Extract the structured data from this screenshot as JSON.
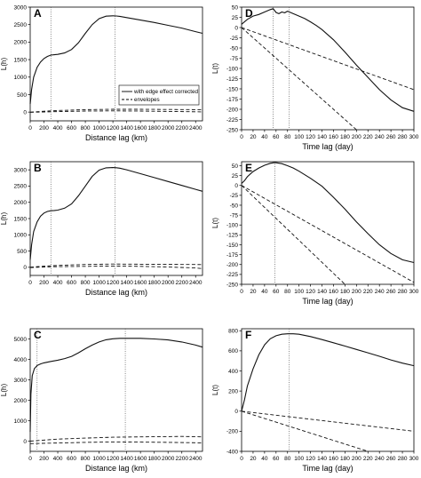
{
  "chart_data": [
    {
      "panel": "A",
      "type": "line",
      "xlabel": "Distance lag (km)",
      "ylabel": "L(h)",
      "xlim": [
        0,
        2500
      ],
      "ylim": [
        -250,
        3000
      ],
      "xticks": [
        0,
        200,
        400,
        600,
        800,
        1000,
        1200,
        1400,
        1600,
        1800,
        2000,
        2200,
        2400
      ],
      "yticks": [
        0,
        500,
        1000,
        1500,
        2000,
        2500,
        3000
      ],
      "vlines": [
        300,
        1230
      ],
      "legend": {
        "placement": "center-right",
        "entries": [
          "with edge effect corrected",
          "envelopes"
        ]
      },
      "series": [
        {
          "name": "with edge effect corrected",
          "style": "solid",
          "x": [
            0,
            20,
            50,
            100,
            150,
            200,
            250,
            300,
            350,
            400,
            500,
            600,
            700,
            800,
            900,
            1000,
            1100,
            1200,
            1250,
            1300,
            1400,
            1600,
            1800,
            2000,
            2200,
            2400,
            2500
          ],
          "y": [
            230,
            650,
            1000,
            1280,
            1430,
            1530,
            1590,
            1630,
            1640,
            1650,
            1690,
            1790,
            1980,
            2250,
            2500,
            2670,
            2740,
            2750,
            2745,
            2735,
            2700,
            2630,
            2560,
            2480,
            2400,
            2300,
            2250
          ]
        },
        {
          "name": "upper envelope",
          "style": "dashed",
          "x": [
            0,
            200,
            400,
            800,
            1200,
            1600,
            2000,
            2400,
            2500
          ],
          "y": [
            0,
            25,
            45,
            70,
            80,
            80,
            75,
            70,
            68
          ]
        },
        {
          "name": "lower envelope",
          "style": "dashed",
          "x": [
            0,
            200,
            400,
            800,
            1200,
            1600,
            2000,
            2400,
            2500
          ],
          "y": [
            -5,
            5,
            15,
            30,
            35,
            30,
            20,
            10,
            5
          ]
        }
      ]
    },
    {
      "panel": "D",
      "type": "line",
      "xlabel": "Time lag (day)",
      "ylabel": "L(t)",
      "xlim": [
        0,
        300
      ],
      "ylim": [
        -250,
        50
      ],
      "xticks": [
        0,
        20,
        40,
        60,
        80,
        100,
        120,
        140,
        160,
        180,
        200,
        220,
        240,
        260,
        280,
        300
      ],
      "yticks": [
        50,
        25,
        0,
        -25,
        -50,
        -75,
        -100,
        -125,
        -150,
        -175,
        -200,
        -225,
        -250
      ],
      "vlines": [
        55,
        83
      ],
      "series": [
        {
          "name": "L(t)",
          "style": "solid",
          "x": [
            0,
            10,
            20,
            30,
            40,
            50,
            55,
            60,
            65,
            70,
            75,
            80,
            85,
            90,
            100,
            110,
            120,
            130,
            140,
            160,
            180,
            200,
            220,
            240,
            260,
            280,
            300
          ],
          "y": [
            8,
            20,
            28,
            32,
            38,
            44,
            46,
            37,
            34,
            38,
            36,
            40,
            37,
            34,
            28,
            22,
            14,
            5,
            -5,
            -30,
            -60,
            -92,
            -122,
            -152,
            -177,
            -196,
            -205
          ]
        },
        {
          "name": "upper envelope",
          "style": "dashed",
          "x": [
            0,
            300
          ],
          "y": [
            0,
            -152
          ]
        },
        {
          "name": "lower envelope",
          "style": "dashed",
          "x": [
            0,
            200
          ],
          "y": [
            0,
            -250
          ]
        }
      ]
    },
    {
      "panel": "B",
      "type": "line",
      "xlabel": "Distance lag (km)",
      "ylabel": "L(h)",
      "xlim": [
        0,
        2500
      ],
      "ylim": [
        -250,
        3250
      ],
      "xticks": [
        0,
        200,
        400,
        600,
        800,
        1000,
        1200,
        1400,
        1600,
        1800,
        2000,
        2200,
        2400
      ],
      "yticks": [
        0,
        500,
        1000,
        1500,
        2000,
        2500,
        3000
      ],
      "vlines": [
        300,
        1230
      ],
      "series": [
        {
          "name": "L(h)",
          "style": "solid",
          "x": [
            0,
            20,
            50,
            100,
            150,
            200,
            250,
            300,
            350,
            400,
            500,
            600,
            700,
            800,
            900,
            1000,
            1100,
            1200,
            1250,
            1300,
            1400,
            1600,
            1800,
            2000,
            2200,
            2400,
            2500
          ],
          "y": [
            230,
            700,
            1100,
            1400,
            1570,
            1670,
            1720,
            1740,
            1750,
            1760,
            1820,
            1950,
            2200,
            2500,
            2800,
            2990,
            3060,
            3070,
            3065,
            3050,
            3000,
            2880,
            2760,
            2640,
            2520,
            2400,
            2340
          ]
        },
        {
          "name": "upper envelope",
          "style": "dashed",
          "x": [
            0,
            200,
            400,
            800,
            1200,
            1600,
            2000,
            2400,
            2500
          ],
          "y": [
            5,
            35,
            60,
            85,
            100,
            95,
            90,
            85,
            80
          ]
        },
        {
          "name": "lower envelope",
          "style": "dashed",
          "x": [
            0,
            200,
            400,
            800,
            1200,
            1600,
            2000,
            2400,
            2500
          ],
          "y": [
            -10,
            10,
            20,
            30,
            40,
            30,
            10,
            -20,
            -40
          ]
        }
      ]
    },
    {
      "panel": "E",
      "type": "line",
      "xlabel": "Time lag (day)",
      "ylabel": "L(t)",
      "xlim": [
        0,
        300
      ],
      "ylim": [
        -250,
        60
      ],
      "xticks": [
        0,
        20,
        40,
        60,
        80,
        100,
        120,
        140,
        160,
        180,
        200,
        220,
        240,
        260,
        280,
        300
      ],
      "yticks": [
        50,
        25,
        0,
        -25,
        -50,
        -75,
        -100,
        -125,
        -150,
        -175,
        -200,
        -225,
        -250
      ],
      "vlines": [
        58
      ],
      "series": [
        {
          "name": "L(t)",
          "style": "solid",
          "x": [
            0,
            5,
            10,
            20,
            30,
            40,
            50,
            58,
            70,
            80,
            90,
            100,
            120,
            140,
            160,
            180,
            200,
            220,
            240,
            260,
            280,
            300
          ],
          "y": [
            5,
            12,
            22,
            35,
            44,
            51,
            56,
            58,
            55,
            50,
            44,
            36,
            18,
            -2,
            -30,
            -60,
            -92,
            -122,
            -150,
            -172,
            -188,
            -195
          ]
        },
        {
          "name": "upper envelope",
          "style": "dashed",
          "x": [
            0,
            300
          ],
          "y": [
            0,
            -245
          ]
        },
        {
          "name": "lower envelope",
          "style": "dashed",
          "x": [
            0,
            180
          ],
          "y": [
            0,
            -250
          ]
        }
      ]
    },
    {
      "panel": "C",
      "type": "line",
      "xlabel": "Distance lag (km)",
      "ylabel": "L(h)",
      "xlim": [
        0,
        2500
      ],
      "ylim": [
        -500,
        5500
      ],
      "xticks": [
        0,
        200,
        400,
        600,
        800,
        1000,
        1200,
        1400,
        1600,
        1800,
        2000,
        2200,
        2400
      ],
      "yticks": [
        0,
        1000,
        2000,
        3000,
        4000,
        5000
      ],
      "vlines": [
        100,
        1380
      ],
      "series": [
        {
          "name": "L(h)",
          "style": "solid",
          "x": [
            0,
            10,
            30,
            60,
            100,
            150,
            200,
            300,
            400,
            500,
            600,
            700,
            800,
            900,
            1000,
            1100,
            1200,
            1300,
            1400,
            1600,
            1800,
            2000,
            2200,
            2400,
            2500
          ],
          "y": [
            450,
            2300,
            3200,
            3550,
            3700,
            3780,
            3830,
            3900,
            3960,
            4040,
            4150,
            4320,
            4520,
            4700,
            4850,
            4960,
            5010,
            5030,
            5030,
            5030,
            5000,
            4950,
            4850,
            4700,
            4600
          ]
        },
        {
          "name": "upper envelope",
          "style": "dashed",
          "x": [
            0,
            400,
            800,
            1200,
            1600,
            2000,
            2200,
            2500
          ],
          "y": [
            0,
            100,
            150,
            190,
            210,
            220,
            230,
            210
          ]
        },
        {
          "name": "lower envelope",
          "style": "dashed",
          "x": [
            0,
            400,
            800,
            1200,
            1600,
            2000,
            2400,
            2500
          ],
          "y": [
            -120,
            -90,
            -60,
            -40,
            -50,
            -60,
            -80,
            -90
          ]
        }
      ]
    },
    {
      "panel": "F",
      "type": "line",
      "xlabel": "Time lag (day)",
      "ylabel": "L(t)",
      "xlim": [
        0,
        300
      ],
      "ylim": [
        -400,
        820
      ],
      "xticks": [
        0,
        20,
        40,
        60,
        80,
        100,
        120,
        140,
        160,
        180,
        200,
        220,
        240,
        260,
        280,
        300
      ],
      "yticks": [
        800,
        600,
        400,
        200,
        0,
        -200,
        -400
      ],
      "vlines": [
        83
      ],
      "series": [
        {
          "name": "L(t)",
          "style": "solid",
          "x": [
            0,
            5,
            10,
            20,
            30,
            40,
            50,
            60,
            70,
            80,
            90,
            100,
            120,
            140,
            160,
            180,
            200,
            220,
            240,
            260,
            280,
            300
          ],
          "y": [
            0,
            110,
            250,
            420,
            560,
            660,
            720,
            750,
            765,
            770,
            770,
            765,
            742,
            712,
            680,
            648,
            614,
            580,
            546,
            510,
            478,
            452
          ]
        },
        {
          "name": "upper envelope",
          "style": "dashed",
          "x": [
            0,
            300
          ],
          "y": [
            0,
            -200
          ]
        },
        {
          "name": "lower envelope",
          "style": "dashed",
          "x": [
            0,
            220
          ],
          "y": [
            0,
            -400
          ]
        }
      ]
    }
  ]
}
